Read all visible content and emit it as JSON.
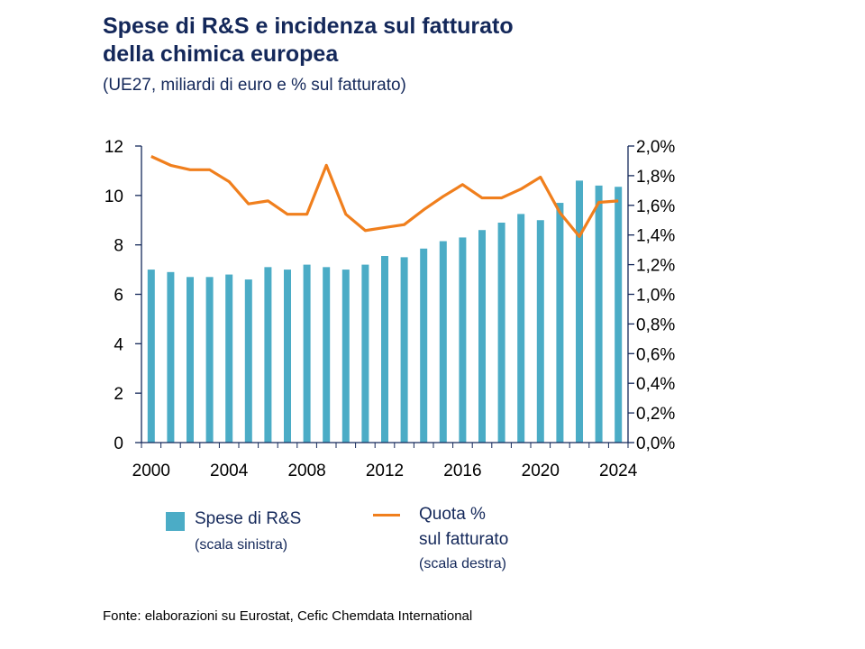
{
  "title_line1": "Spese di R&S e incidenza sul fatturato",
  "title_line2": "della chimica europea",
  "subtitle": "(UE27, miliardi di euro e % sul fatturato)",
  "source": "Fonte: elaborazioni su Eurostat, Cefic Chemdata International",
  "colors": {
    "bars": "#4BACC6",
    "line": "#F07F1D",
    "text": "#14285a"
  },
  "chart_data": {
    "type": "bar+line",
    "categories": [
      2000,
      2001,
      2002,
      2003,
      2004,
      2005,
      2006,
      2007,
      2008,
      2009,
      2010,
      2011,
      2012,
      2013,
      2014,
      2015,
      2016,
      2017,
      2018,
      2019,
      2020,
      2021,
      2022,
      2023,
      2024
    ],
    "x_tick_labels": [
      "2000",
      "2004",
      "2008",
      "2012",
      "2016",
      "2020",
      "2024"
    ],
    "left_axis": {
      "ylim": [
        0,
        12
      ],
      "ticks": [
        "0",
        "2",
        "4",
        "6",
        "8",
        "10",
        "12"
      ]
    },
    "right_axis": {
      "ylim": [
        0,
        2.0
      ],
      "ticks": [
        "0,0%",
        "0,2%",
        "0,4%",
        "0,6%",
        "0,8%",
        "1,0%",
        "1,2%",
        "1,4%",
        "1,6%",
        "1,8%",
        "2,0%"
      ]
    },
    "grid": false,
    "legend_position": "bottom",
    "series": [
      {
        "name": "Spese di R&S",
        "note": "(scala sinistra)",
        "type": "bar",
        "axis": "left",
        "values": [
          7.0,
          6.9,
          6.7,
          6.7,
          6.8,
          6.6,
          7.1,
          7.0,
          7.2,
          7.1,
          7.0,
          7.2,
          7.55,
          7.5,
          7.85,
          8.15,
          8.3,
          8.6,
          8.9,
          9.25,
          9.0,
          9.7,
          10.6,
          10.4,
          10.35
        ]
      },
      {
        "name": "Quota % sul fatturato",
        "name_line1": "Quota %",
        "name_line2": "sul fatturato",
        "note": "(scala destra)",
        "type": "line",
        "axis": "right",
        "values": [
          1.93,
          1.87,
          1.84,
          1.84,
          1.76,
          1.61,
          1.63,
          1.54,
          1.54,
          1.87,
          1.54,
          1.43,
          1.45,
          1.47,
          1.57,
          1.66,
          1.74,
          1.65,
          1.65,
          1.71,
          1.79,
          1.55,
          1.39,
          1.62,
          1.63
        ]
      }
    ]
  }
}
